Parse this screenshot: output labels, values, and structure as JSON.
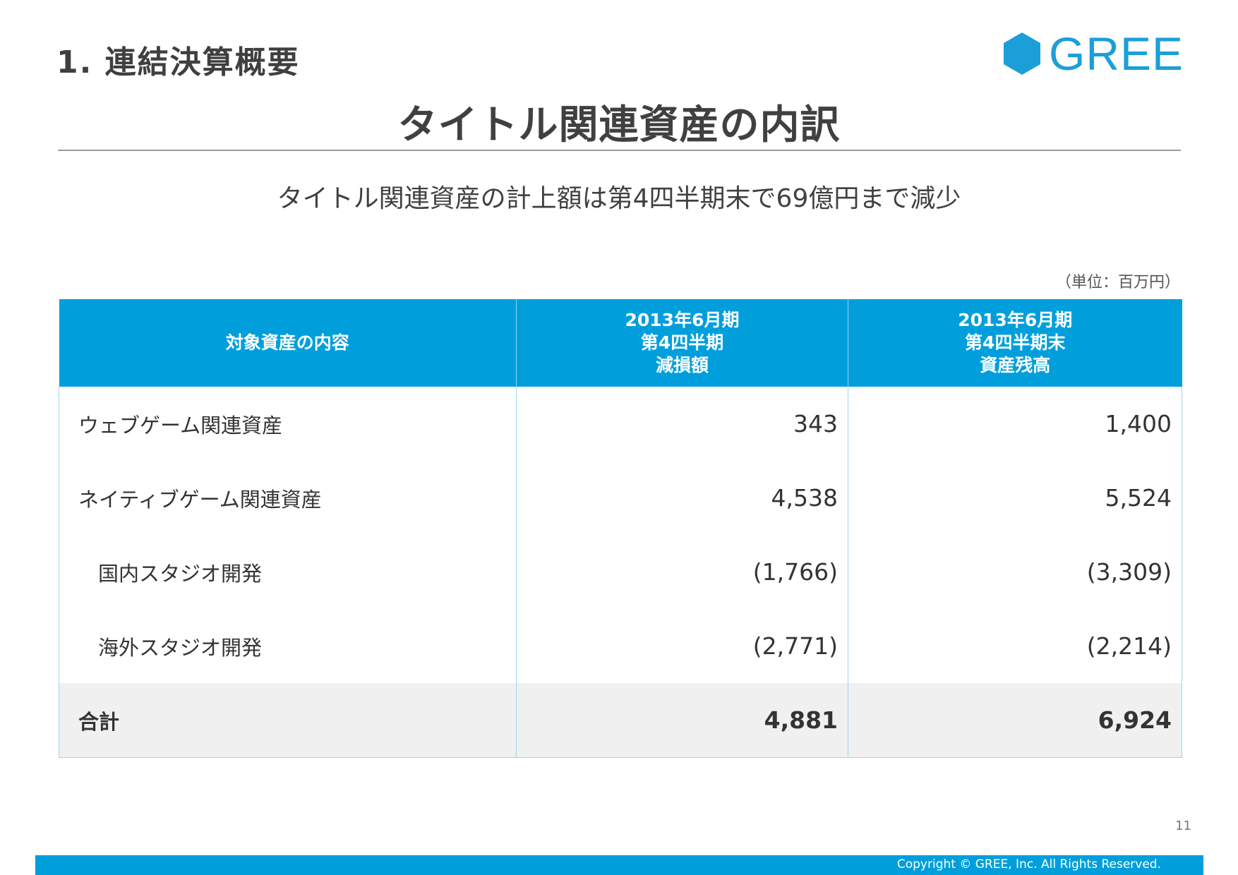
{
  "header": {
    "section_title": "1. 連結決算概要",
    "logo_text": "GREE",
    "logo_color": "#1b9fd9"
  },
  "title": "タイトル関連資産の内訳",
  "subtitle": "タイトル関連資産の計上額は第4四半期末で69億円まで減少",
  "unit": "（単位：百万円）",
  "table": {
    "header_color": "#009fdc",
    "columns": [
      {
        "lines": [
          "対象資産の内容"
        ]
      },
      {
        "lines": [
          "2013年6月期",
          "第4四半期",
          "減損額"
        ]
      },
      {
        "lines": [
          "2013年6月期",
          "第4四半期末",
          "資産残高"
        ]
      }
    ],
    "rows": [
      {
        "label": "ウェブゲーム関連資産",
        "impairment": "343",
        "balance": "1,400"
      },
      {
        "label": "ネイティブゲーム関連資産",
        "impairment": "4,538",
        "balance": "5,524"
      },
      {
        "label": "国内スタジオ開発",
        "impairment": "(1,766)",
        "balance": "(3,309)"
      },
      {
        "label": "海外スタジオ開発",
        "impairment": "(2,771)",
        "balance": "(2,214)"
      }
    ],
    "total": {
      "label": "合計",
      "impairment": "4,881",
      "balance": "6,924"
    }
  },
  "footer": {
    "page_number": "11",
    "copyright": "Copyright © GREE, Inc. All Rights Reserved."
  }
}
